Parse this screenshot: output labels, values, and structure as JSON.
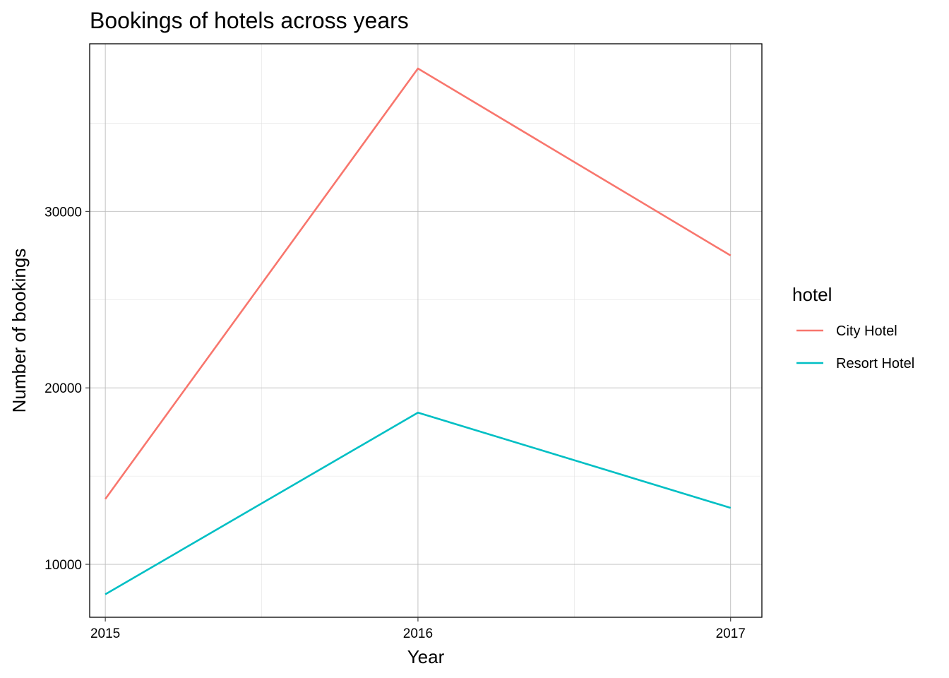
{
  "chart_data": {
    "type": "line",
    "title": "Bookings of hotels across years",
    "xlabel": "Year",
    "ylabel": "Number of bookings",
    "x": [
      2015,
      2016,
      2017
    ],
    "x_tick_labels": [
      "2015",
      "2016",
      "2017"
    ],
    "y_ticks": [
      10000,
      20000,
      30000
    ],
    "y_tick_labels": [
      "10000",
      "20000",
      "30000"
    ],
    "xlim": [
      2014.95,
      2017.1
    ],
    "ylim": [
      7000,
      39500
    ],
    "grid": true,
    "legend": {
      "title": "hotel",
      "position": "right"
    },
    "series": [
      {
        "name": "City Hotel",
        "values": [
          13700,
          38100,
          27500
        ],
        "color": "#F8766D"
      },
      {
        "name": "Resort Hotel",
        "values": [
          8300,
          18600,
          13200
        ],
        "color": "#00BFC4"
      }
    ]
  }
}
